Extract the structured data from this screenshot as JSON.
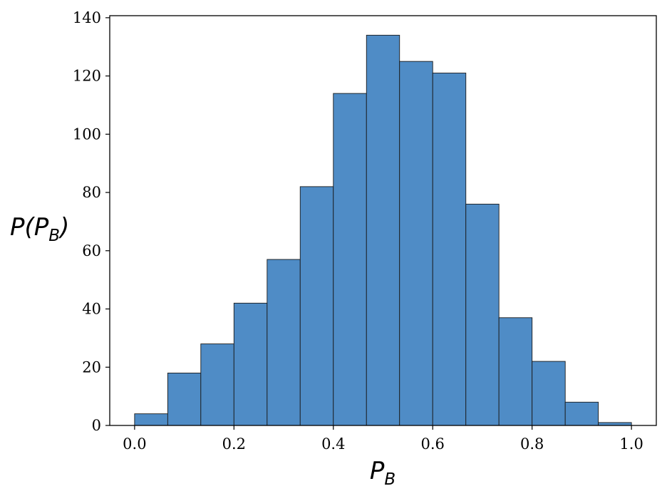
{
  "chart_data": {
    "type": "bar",
    "subtype": "histogram",
    "title": "",
    "xlabel": "P",
    "xlabel_sub": "B",
    "ylabel": "P(P",
    "ylabel_sub": "B",
    "ylabel_close": ")",
    "bin_edges": [
      0.0,
      0.0667,
      0.1333,
      0.2,
      0.2667,
      0.3333,
      0.4,
      0.4667,
      0.5333,
      0.6,
      0.6667,
      0.7333,
      0.8,
      0.8667,
      0.9333,
      1.0
    ],
    "values": [
      4,
      18,
      28,
      42,
      57,
      82,
      114,
      134,
      125,
      121,
      76,
      37,
      22,
      8,
      1
    ],
    "xlim": [
      -0.05,
      1.05
    ],
    "ylim": [
      0,
      140.7
    ],
    "xticks": [
      0.0,
      0.2,
      0.4,
      0.6,
      0.8,
      1.0
    ],
    "xtick_labels": [
      "0.0",
      "0.2",
      "0.4",
      "0.6",
      "0.8",
      "1.0"
    ],
    "yticks": [
      0,
      20,
      40,
      60,
      80,
      100,
      120,
      140
    ],
    "ytick_labels": [
      "0",
      "20",
      "40",
      "60",
      "80",
      "100",
      "120",
      "140"
    ],
    "bar_color": "#4f8cc6",
    "edge_color": "#1a1a1a",
    "grid": false,
    "legend": "none"
  }
}
